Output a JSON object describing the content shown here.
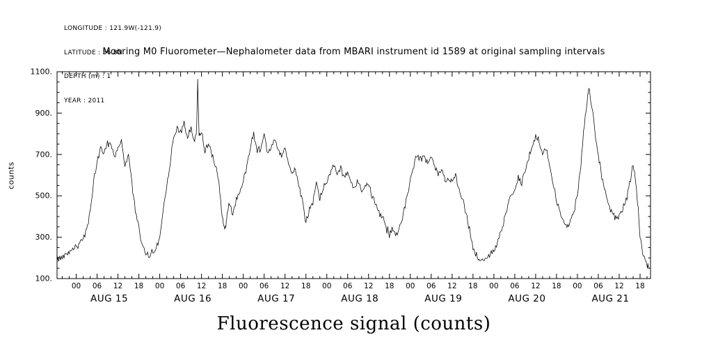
{
  "station_info": {
    "lines": [
      "LONGITUDE : 121.9W(-121.9)",
      "LATITUDE : 36.8N",
      "DEPTH (m) : 1",
      "YEAR : 2011"
    ]
  },
  "chart_data": {
    "type": "line",
    "title": "Mooring M0 Fluorometer—Nephalometer data from MBARI instrument id 1589 at original sampling intervals",
    "xlabel": "Fluorescence signal (counts)",
    "ylabel": "counts",
    "x_unit": "hours since AUG 15 00:00",
    "ylim": [
      100,
      1100
    ],
    "yticks": [
      100,
      300,
      500,
      700,
      900,
      1100
    ],
    "ytick_labels": [
      "100.",
      "300.",
      "500.",
      "700.",
      "900.",
      "1100."
    ],
    "y_minor_step": 50,
    "xlim": [
      -5.5,
      165
    ],
    "x_major_step": 6,
    "x_minor_step": 2,
    "x_first_major": 0,
    "x_last_major": 162,
    "hour_labels_cycle": [
      "00",
      "06",
      "12",
      "18"
    ],
    "days": [
      {
        "label": "AUG 15",
        "center_hour": 9.5
      },
      {
        "label": "AUG 16",
        "center_hour": 33.5
      },
      {
        "label": "AUG 17",
        "center_hour": 57.5
      },
      {
        "label": "AUG 18",
        "center_hour": 81.5
      },
      {
        "label": "AUG 19",
        "center_hour": 105.5
      },
      {
        "label": "AUG 20",
        "center_hour": 129.5
      },
      {
        "label": "AUG 21",
        "center_hour": 153.5
      }
    ],
    "grid": false,
    "legend": "none",
    "line_color": "#000000",
    "background": "#ffffff",
    "noise": {
      "amplitude": 19,
      "subdivisions": 4,
      "seed": 42
    },
    "series": [
      {
        "name": "fluorescence_counts",
        "points": [
          [
            -5.5,
            190
          ],
          [
            -5,
            196
          ],
          [
            -4,
            205
          ],
          [
            -3,
            220
          ],
          [
            -2,
            234
          ],
          [
            -1,
            246
          ],
          [
            0,
            256
          ],
          [
            1,
            266
          ],
          [
            2,
            296
          ],
          [
            3,
            336
          ],
          [
            4,
            430
          ],
          [
            5,
            560
          ],
          [
            6,
            660
          ],
          [
            7,
            730
          ],
          [
            8,
            710
          ],
          [
            9,
            758
          ],
          [
            10,
            744
          ],
          [
            11,
            692
          ],
          [
            12,
            734
          ],
          [
            13,
            764
          ],
          [
            14,
            646
          ],
          [
            15,
            704
          ],
          [
            16,
            560
          ],
          [
            17,
            430
          ],
          [
            18,
            340
          ],
          [
            19,
            252
          ],
          [
            20,
            216
          ],
          [
            21,
            210
          ],
          [
            22,
            226
          ],
          [
            23,
            246
          ],
          [
            24,
            300
          ],
          [
            25,
            430
          ],
          [
            26,
            560
          ],
          [
            27,
            660
          ],
          [
            28,
            780
          ],
          [
            29,
            830
          ],
          [
            30,
            808
          ],
          [
            31,
            846
          ],
          [
            32,
            772
          ],
          [
            33,
            828
          ],
          [
            34,
            760
          ],
          [
            34.6,
            820
          ],
          [
            34.9,
            1052
          ],
          [
            35.3,
            792
          ],
          [
            36,
            810
          ],
          [
            37,
            716
          ],
          [
            38,
            758
          ],
          [
            39,
            704
          ],
          [
            40,
            646
          ],
          [
            41,
            560
          ],
          [
            42,
            386
          ],
          [
            42.5,
            352
          ],
          [
            43,
            346
          ],
          [
            43.5,
            424
          ],
          [
            44,
            466
          ],
          [
            45,
            416
          ],
          [
            46,
            486
          ],
          [
            47,
            514
          ],
          [
            48,
            566
          ],
          [
            49,
            644
          ],
          [
            50,
            744
          ],
          [
            51,
            798
          ],
          [
            52,
            722
          ],
          [
            53,
            736
          ],
          [
            54,
            778
          ],
          [
            55,
            702
          ],
          [
            56,
            734
          ],
          [
            57,
            778
          ],
          [
            58,
            720
          ],
          [
            59,
            690
          ],
          [
            60,
            730
          ],
          [
            61,
            650
          ],
          [
            62,
            602
          ],
          [
            63,
            640
          ],
          [
            64,
            546
          ],
          [
            65,
            480
          ],
          [
            66,
            366
          ],
          [
            67,
            424
          ],
          [
            68,
            464
          ],
          [
            69,
            558
          ],
          [
            70,
            482
          ],
          [
            71,
            540
          ],
          [
            72,
            562
          ],
          [
            73,
            620
          ],
          [
            74,
            654
          ],
          [
            75,
            606
          ],
          [
            76,
            630
          ],
          [
            77,
            586
          ],
          [
            78,
            610
          ],
          [
            79,
            562
          ],
          [
            80,
            540
          ],
          [
            81,
            570
          ],
          [
            82,
            526
          ],
          [
            83,
            550
          ],
          [
            84,
            560
          ],
          [
            85,
            506
          ],
          [
            86,
            470
          ],
          [
            87,
            430
          ],
          [
            88,
            390
          ],
          [
            89,
            346
          ],
          [
            90,
            320
          ],
          [
            91,
            350
          ],
          [
            92,
            306
          ],
          [
            93,
            340
          ],
          [
            94,
            420
          ],
          [
            95,
            500
          ],
          [
            96,
            580
          ],
          [
            97,
            650
          ],
          [
            98,
            700
          ],
          [
            99,
            670
          ],
          [
            100,
            700
          ],
          [
            101,
            660
          ],
          [
            102,
            690
          ],
          [
            103,
            640
          ],
          [
            104,
            600
          ],
          [
            105,
            630
          ],
          [
            106,
            566
          ],
          [
            107,
            590
          ],
          [
            108,
            560
          ],
          [
            109,
            600
          ],
          [
            110,
            520
          ],
          [
            111,
            480
          ],
          [
            112,
            420
          ],
          [
            113,
            330
          ],
          [
            114,
            250
          ],
          [
            115,
            210
          ],
          [
            116,
            190
          ],
          [
            117,
            186
          ],
          [
            118,
            200
          ],
          [
            119,
            216
          ],
          [
            120,
            230
          ],
          [
            121,
            270
          ],
          [
            122,
            320
          ],
          [
            123,
            380
          ],
          [
            124,
            450
          ],
          [
            125,
            500
          ],
          [
            126,
            540
          ],
          [
            127,
            580
          ],
          [
            128,
            560
          ],
          [
            129,
            620
          ],
          [
            130,
            680
          ],
          [
            131,
            740
          ],
          [
            132,
            790
          ],
          [
            133,
            760
          ],
          [
            134,
            700
          ],
          [
            135,
            730
          ],
          [
            136,
            650
          ],
          [
            137,
            560
          ],
          [
            138,
            480
          ],
          [
            139,
            420
          ],
          [
            140,
            380
          ],
          [
            141,
            350
          ],
          [
            142,
            380
          ],
          [
            143,
            420
          ],
          [
            144,
            500
          ],
          [
            145,
            650
          ],
          [
            146,
            850
          ],
          [
            147,
            980
          ],
          [
            147.3,
            1020
          ],
          [
            148,
            950
          ],
          [
            149,
            820
          ],
          [
            150,
            700
          ],
          [
            151,
            600
          ],
          [
            152,
            520
          ],
          [
            153,
            460
          ],
          [
            154,
            420
          ],
          [
            155,
            390
          ],
          [
            156,
            400
          ],
          [
            157,
            430
          ],
          [
            158,
            480
          ],
          [
            159,
            560
          ],
          [
            160,
            645
          ],
          [
            160.8,
            560
          ],
          [
            161.5,
            420
          ],
          [
            162,
            300
          ],
          [
            163,
            210
          ],
          [
            164,
            172
          ],
          [
            164.5,
            152
          ]
        ]
      }
    ]
  }
}
